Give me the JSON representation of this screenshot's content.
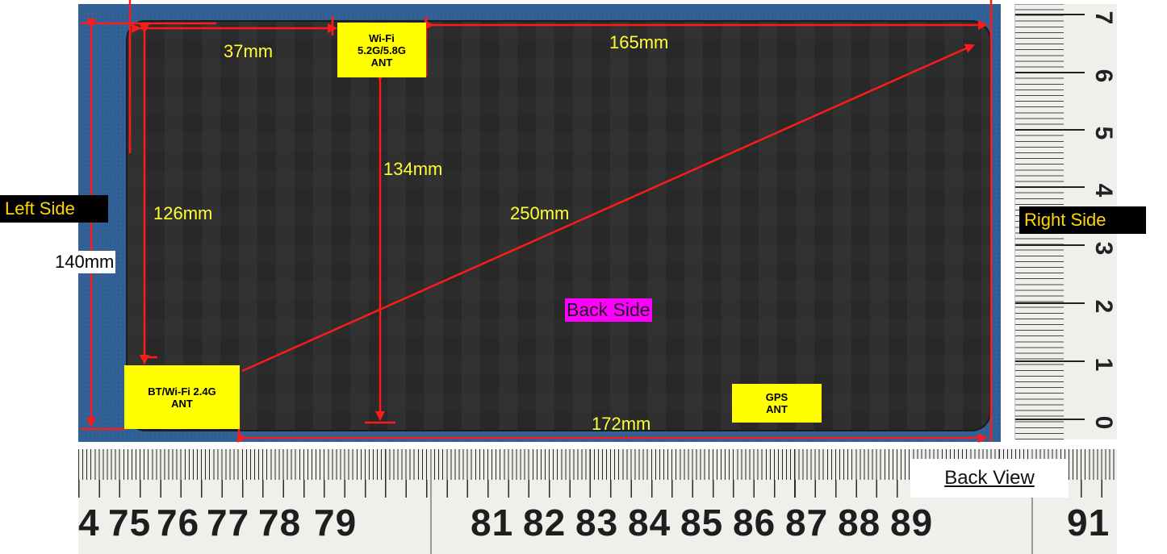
{
  "measurements": {
    "wifi_offset": "37mm",
    "top_width": "165mm",
    "height_inner": "134mm",
    "left_height": "126mm",
    "diagonal": "250mm",
    "bottom_width": "172mm",
    "total_height": "140mm"
  },
  "labels": {
    "left_side": "Left Side",
    "right_side": "Right Side",
    "back_side": "Back Side",
    "back_view": "Back View"
  },
  "antennas": {
    "wifi": [
      "Wi-Fi",
      "5.2G/5.8G",
      "ANT"
    ],
    "bt": [
      "BT/Wi-Fi 2.4G",
      "ANT"
    ],
    "gps": [
      "GPS",
      "ANT"
    ]
  },
  "ruler_bottom": [
    "4",
    "75",
    "76",
    "77",
    "78",
    "79",
    "81",
    "82",
    "83",
    "84",
    "85",
    "86",
    "87",
    "88",
    "89",
    "91"
  ],
  "ruler_right": [
    "7",
    "6",
    "5",
    "4",
    "3",
    "2",
    "1",
    "0"
  ],
  "colors": {
    "dimension_line": "#ff1a1a",
    "measurement_text": "#ffff33",
    "antenna_label_bg": "#ffff00",
    "back_side_bg": "#ff00ff"
  }
}
